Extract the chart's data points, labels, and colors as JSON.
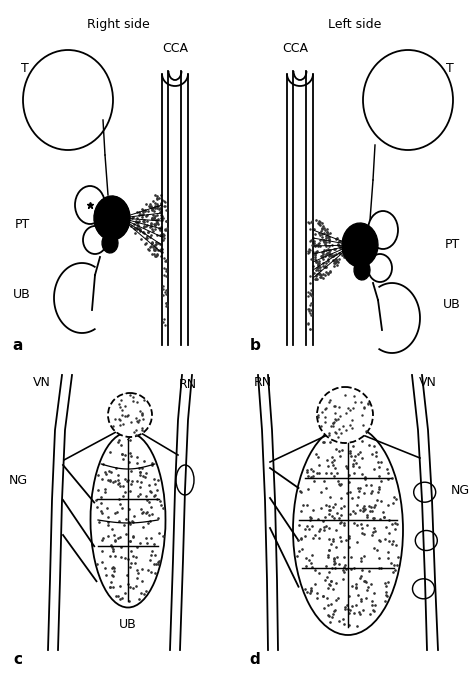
{
  "bg_color": "#ffffff",
  "line_color": "#000000",
  "lw": 1.3,
  "top_titles": [
    "Right side",
    "Left side"
  ],
  "panel_labels": [
    "a",
    "b",
    "c",
    "d"
  ]
}
